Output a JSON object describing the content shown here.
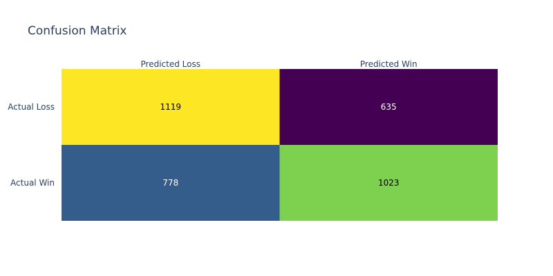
{
  "chart_data": {
    "type": "heatmap",
    "title": "Confusion Matrix",
    "x_categories": [
      "Predicted Loss",
      "Predicted Win"
    ],
    "y_categories": [
      "Actual Loss",
      "Actual Win"
    ],
    "values": [
      [
        1119,
        635
      ],
      [
        778,
        1023
      ]
    ],
    "colorscale": "viridis",
    "x_axis_side": "top",
    "grid": false,
    "legend": "none",
    "colors": {
      "text_dark": "#000000",
      "text_light": "#ffffff",
      "axis_text": "#2a3f5f"
    }
  }
}
